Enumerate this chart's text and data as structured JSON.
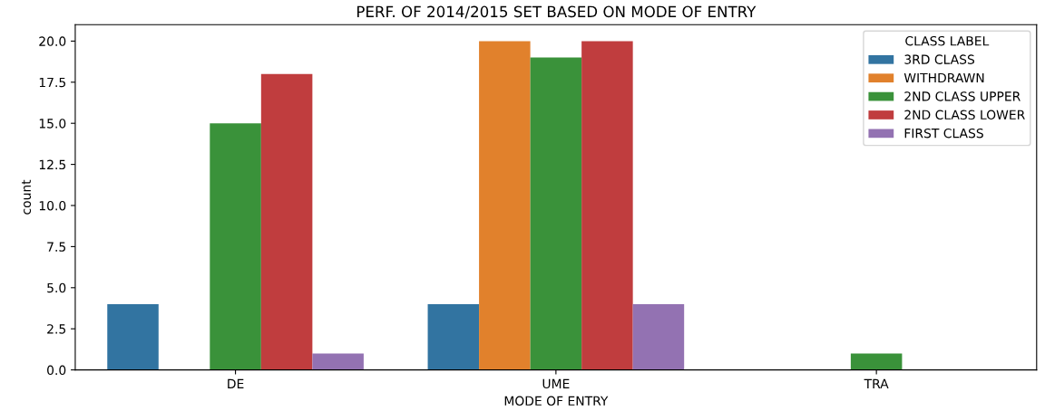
{
  "chart_data": {
    "type": "bar",
    "title": "PERF. OF 2014/2015 SET BASED ON MODE OF ENTRY",
    "xlabel": "MODE OF ENTRY",
    "ylabel": "count",
    "legend_title": "CLASS LABEL",
    "categories": [
      "DE",
      "UME",
      "TRA"
    ],
    "series": [
      {
        "name": "3RD CLASS",
        "color": "#3274a1",
        "values": [
          4,
          4,
          null
        ]
      },
      {
        "name": "WITHDRAWN",
        "color": "#e1812c",
        "values": [
          null,
          20,
          null
        ]
      },
      {
        "name": "2ND CLASS UPPER",
        "color": "#3a923a",
        "values": [
          15,
          19,
          1
        ]
      },
      {
        "name": "2ND CLASS LOWER",
        "color": "#c03d3e",
        "values": [
          18,
          20,
          null
        ]
      },
      {
        "name": "FIRST CLASS",
        "color": "#9372b2",
        "values": [
          1,
          4,
          null
        ]
      }
    ],
    "ylim": [
      0,
      21
    ],
    "yticks": [
      {
        "value": 0,
        "label": "0.0"
      },
      {
        "value": 2.5,
        "label": "2.5"
      },
      {
        "value": 5,
        "label": "5.0"
      },
      {
        "value": 7.5,
        "label": "7.5"
      },
      {
        "value": 10,
        "label": "10.0"
      },
      {
        "value": 12.5,
        "label": "12.5"
      },
      {
        "value": 15,
        "label": "15.0"
      },
      {
        "value": 17.5,
        "label": "17.5"
      },
      {
        "value": 20,
        "label": "20.0"
      }
    ],
    "grid": false,
    "legend": "top right"
  }
}
